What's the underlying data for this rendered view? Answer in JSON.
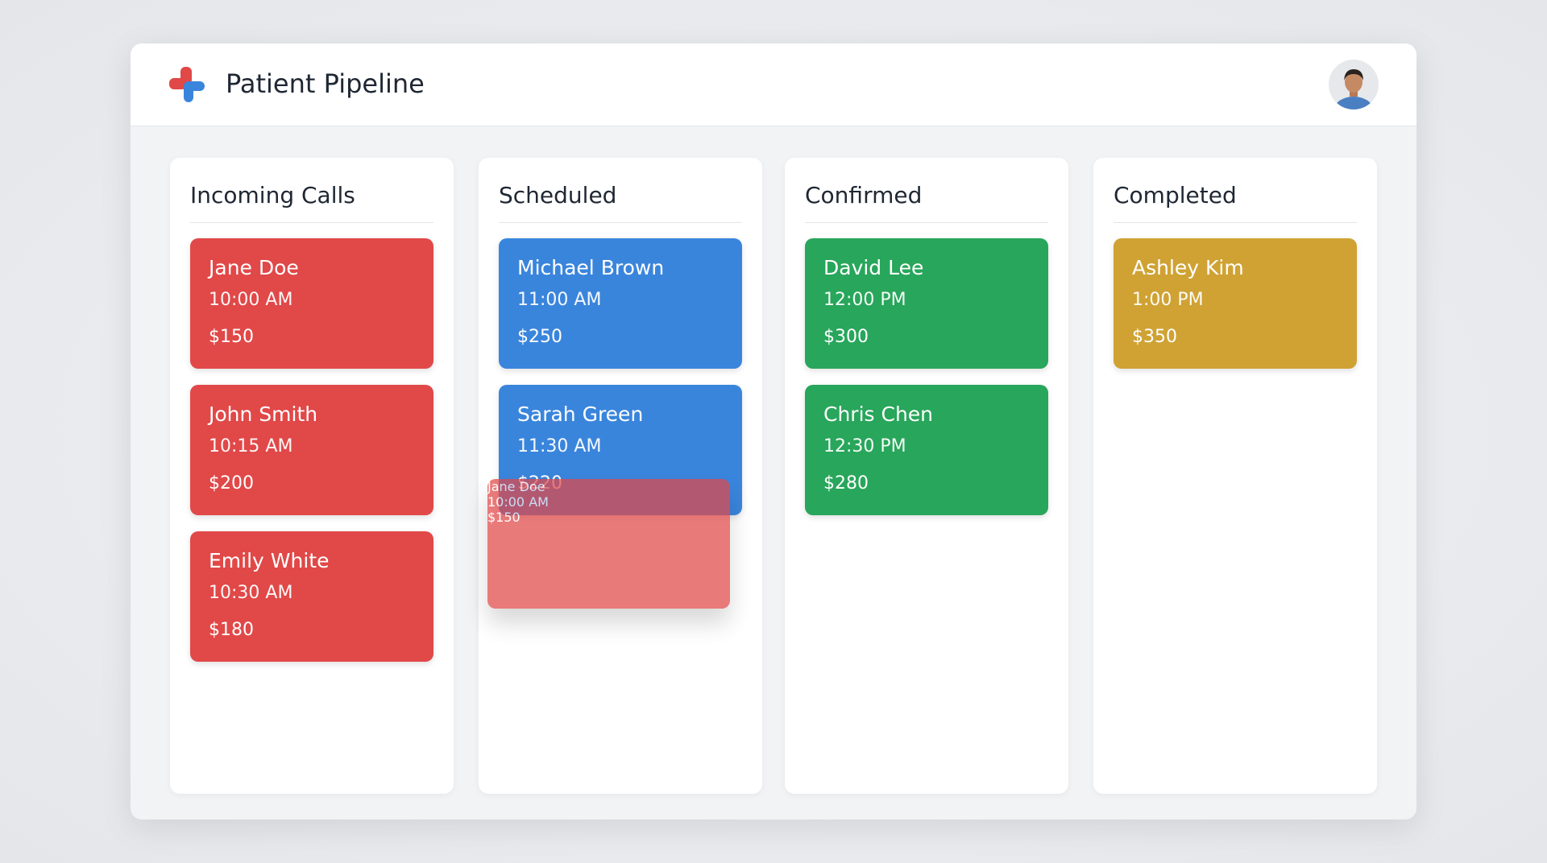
{
  "header": {
    "title": "Patient Pipeline"
  },
  "columns": [
    {
      "title": "Incoming Calls",
      "color": "#e14848",
      "cards": [
        {
          "name": "Jane Doe",
          "time": "10:00 AM",
          "price": "$150"
        },
        {
          "name": "John Smith",
          "time": "10:15 AM",
          "price": "$200"
        },
        {
          "name": "Emily White",
          "time": "10:30 AM",
          "price": "$180"
        }
      ]
    },
    {
      "title": "Scheduled",
      "color": "#3a85dc",
      "cards": [
        {
          "name": "Michael Brown",
          "time": "11:00 AM",
          "price": "$250"
        },
        {
          "name": "Sarah Green",
          "time": "11:30 AM",
          "price": "$220"
        }
      ]
    },
    {
      "title": "Confirmed",
      "color": "#28a65b",
      "cards": [
        {
          "name": "David Lee",
          "time": "12:00 PM",
          "price": "$300"
        },
        {
          "name": "Chris Chen",
          "time": "12:30 PM",
          "price": "$280"
        }
      ]
    },
    {
      "title": "Completed",
      "color": "#cfa233",
      "cards": [
        {
          "name": "Ashley Kim",
          "time": "1:00 PM",
          "price": "$350"
        }
      ]
    }
  ],
  "drag_preview": {
    "name": "Jane Doe",
    "time": "10:00 AM",
    "price": "$150",
    "color": "#e14848"
  }
}
